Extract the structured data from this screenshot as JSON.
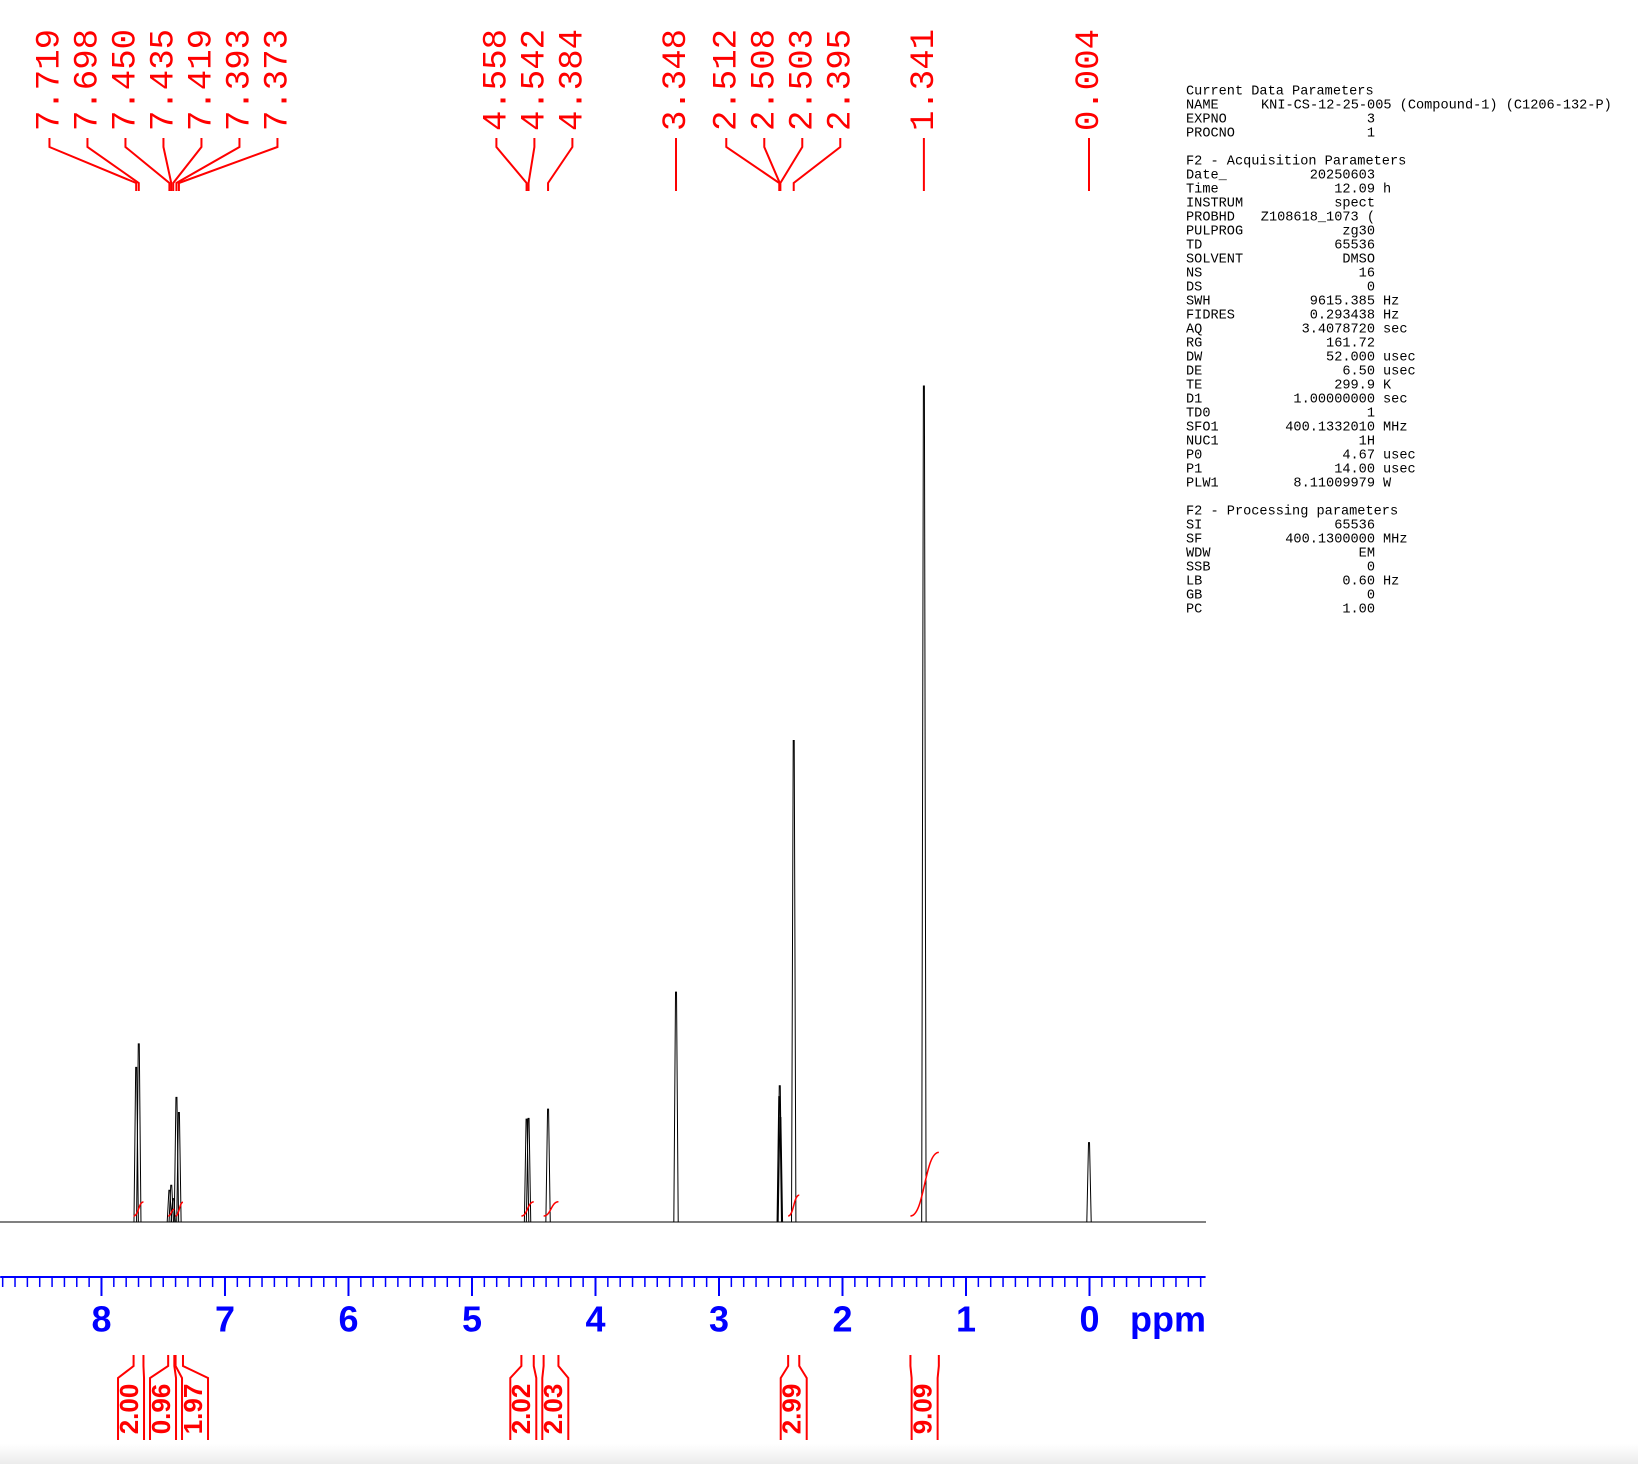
{
  "chart_data": {
    "type": "nmr-spectrum",
    "xlabel": "ppm",
    "xlim": [
      8.82,
      -0.94
    ],
    "xticks": [
      8,
      7,
      6,
      5,
      4,
      3,
      2,
      1,
      0
    ],
    "xminor_step": 0.1,
    "ylim": [
      0,
      100
    ],
    "x": [
      7.719,
      7.698,
      7.45,
      7.435,
      7.419,
      7.393,
      7.373,
      4.558,
      4.542,
      4.384,
      3.348,
      2.512,
      2.508,
      2.503,
      2.395,
      1.341,
      0.004
    ],
    "x_labels": [
      "7.719",
      "7.698",
      "7.450",
      "7.435",
      "7.419",
      "7.393",
      "7.373",
      "4.558",
      "4.542",
      "4.384",
      "3.348",
      "2.512",
      "2.508",
      "2.503",
      "2.395",
      "1.341",
      "0.004"
    ],
    "values": [
      18.5,
      21.3,
      3.8,
      4.4,
      2.8,
      14.9,
      13.1,
      12.3,
      12.4,
      13.5,
      27.5,
      15,
      16.3,
      12.5,
      57.6,
      100,
      9.5
    ],
    "integrals": [
      {
        "from": 7.74,
        "to": 7.66,
        "value": 2,
        "label": "2.00"
      },
      {
        "from": 7.46,
        "to": 7.41,
        "value": 0.96,
        "label": "0.96"
      },
      {
        "from": 7.4,
        "to": 7.34,
        "value": 1.97,
        "label": "1.97"
      },
      {
        "from": 4.6,
        "to": 4.5,
        "value": 2.02,
        "label": "2.02"
      },
      {
        "from": 4.42,
        "to": 4.3,
        "value": 2.03,
        "label": "2.03"
      },
      {
        "from": 2.44,
        "to": 2.35,
        "value": 2.99,
        "label": "2.99"
      },
      {
        "from": 1.45,
        "to": 1.22,
        "value": 9.09,
        "label": "9.09"
      }
    ],
    "colors": {
      "spectrum": "#000000",
      "annotation": "#ff0000",
      "axis": "#0000ff"
    },
    "parameters": [
      {
        "title": "Current Data Parameters",
        "rows": [
          [
            "NAME",
            "KNI-CS-12-25-005 (Compound-1) (C1206-132-P)"
          ],
          [
            "EXPNO",
            "3"
          ],
          [
            "PROCNO",
            "1"
          ]
        ]
      },
      {
        "title": "F2 - Acquisition Parameters",
        "rows": [
          [
            "Date_",
            "20250603"
          ],
          [
            "Time",
            "12.09",
            "h"
          ],
          [
            "INSTRUM",
            "spect"
          ],
          [
            "PROBHD",
            "Z108618_1073 ("
          ],
          [
            "PULPROG",
            "zg30"
          ],
          [
            "TD",
            "65536"
          ],
          [
            "SOLVENT",
            "DMSO"
          ],
          [
            "NS",
            "16"
          ],
          [
            "DS",
            "0"
          ],
          [
            "SWH",
            "9615.385",
            "Hz"
          ],
          [
            "FIDRES",
            "0.293438",
            "Hz"
          ],
          [
            "AQ",
            "3.4078720",
            "sec"
          ],
          [
            "RG",
            "161.72"
          ],
          [
            "DW",
            "52.000",
            "usec"
          ],
          [
            "DE",
            "6.50",
            "usec"
          ],
          [
            "TE",
            "299.9",
            "K"
          ],
          [
            "D1",
            "1.00000000",
            "sec"
          ],
          [
            "TD0",
            "1"
          ],
          [
            "SFO1",
            "400.1332010",
            "MHz"
          ],
          [
            "NUC1",
            "1H"
          ],
          [
            "P0",
            "4.67",
            "usec"
          ],
          [
            "P1",
            "14.00",
            "usec"
          ],
          [
            "PLW1",
            "8.11009979",
            "W"
          ]
        ]
      },
      {
        "title": "F2 - Processing parameters",
        "rows": [
          [
            "SI",
            "65536"
          ],
          [
            "SF",
            "400.1300000",
            "MHz"
          ],
          [
            "WDW",
            "EM"
          ],
          [
            "SSB",
            "0"
          ],
          [
            "LB",
            "0.60",
            "Hz"
          ],
          [
            "GB",
            "0"
          ],
          [
            "PC",
            "1.00"
          ]
        ]
      }
    ]
  }
}
